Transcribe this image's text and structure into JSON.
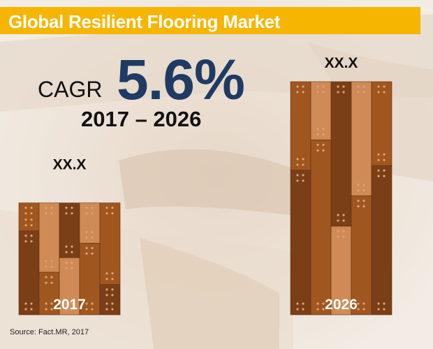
{
  "header": {
    "title": "Global Resilient Flooring Market"
  },
  "cagr": {
    "label": "CAGR",
    "value": "5.6%",
    "period": "2017 – 2026"
  },
  "footer": {
    "source": "Source: Fact.MR, 2017"
  },
  "colors": {
    "title_bar": "#f6b500",
    "cagr_value": "#1f3b63",
    "plank_dark": "#7a3f17",
    "plank_medium": "#a0561f",
    "plank_light": "#cf8a55"
  },
  "chart_data": {
    "type": "bar",
    "title": "Global Resilient Flooring Market",
    "categories": [
      "2017",
      "2026"
    ],
    "value_labels": [
      "XX.X",
      "XX.X"
    ],
    "relative_heights": [
      0.48,
      1.0
    ],
    "xlabel": "",
    "ylabel": "",
    "grid": false,
    "legend": "none",
    "bar_style": "wood-plank"
  }
}
